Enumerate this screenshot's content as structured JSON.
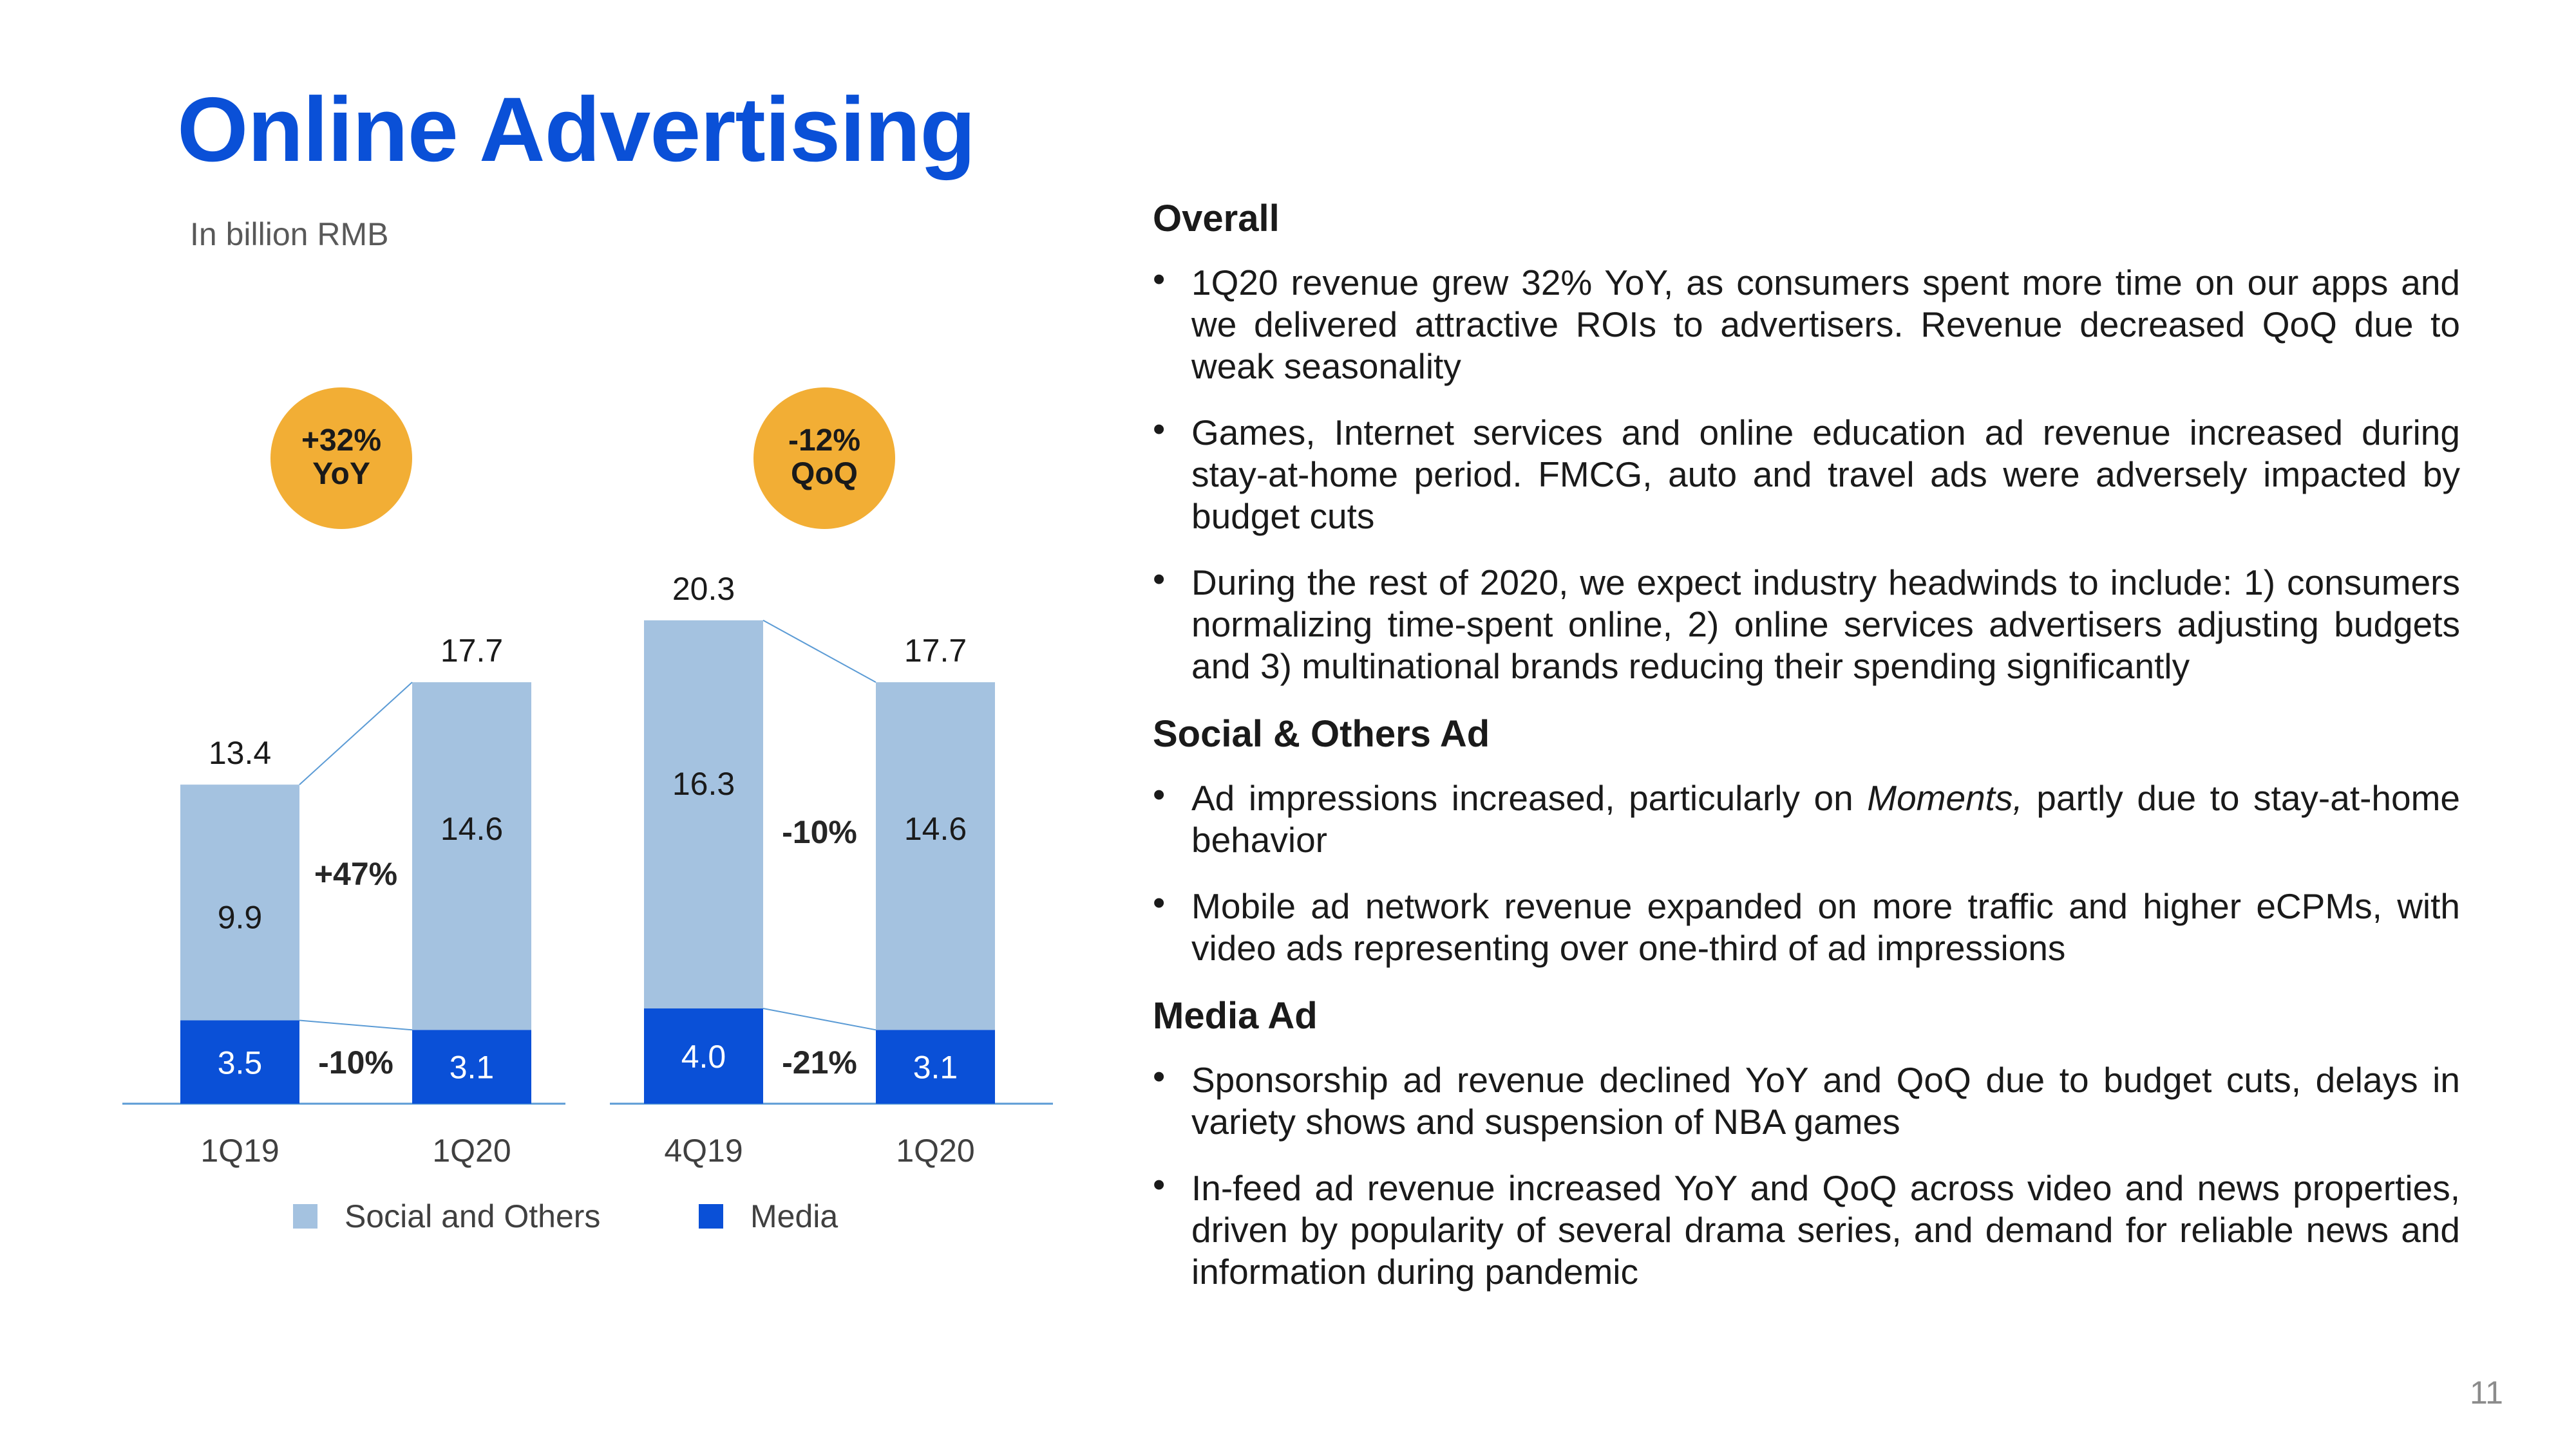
{
  "slide": {
    "title": "Online Advertising",
    "unit": "In billion RMB",
    "page_number": "11"
  },
  "colors": {
    "title": "#0a50d7",
    "social": "#a4c2e0",
    "media": "#0a50d7",
    "badge": "#f2ae35",
    "axis": "#5b9bd5"
  },
  "chart_data": [
    {
      "type": "bar",
      "stacked": true,
      "categories": [
        "1Q19",
        "1Q20"
      ],
      "series": [
        {
          "name": "Media",
          "values": [
            3.5,
            3.1
          ]
        },
        {
          "name": "Social and Others",
          "values": [
            9.9,
            14.6
          ]
        }
      ],
      "totals": [
        13.4,
        17.7
      ],
      "annotations": {
        "social_growth": "+47%",
        "media_growth": "-10%"
      },
      "badge": {
        "line1": "+32%",
        "line2": "YoY"
      }
    },
    {
      "type": "bar",
      "stacked": true,
      "categories": [
        "4Q19",
        "1Q20"
      ],
      "series": [
        {
          "name": "Media",
          "values": [
            4.0,
            3.1
          ]
        },
        {
          "name": "Social and Others",
          "values": [
            16.3,
            14.6
          ]
        }
      ],
      "totals": [
        20.3,
        17.7
      ],
      "annotations": {
        "social_growth": "-10%",
        "media_growth": "-21%"
      },
      "badge": {
        "line1": "-12%",
        "line2": "QoQ"
      }
    }
  ],
  "legend": [
    {
      "label": "Social and Others",
      "color": "#a4c2e0"
    },
    {
      "label": "Media",
      "color": "#0a50d7"
    }
  ],
  "sections": [
    {
      "heading": "Overall",
      "bullets": [
        [
          {
            "text": "1Q20 revenue grew 32% YoY, as consumers spent more time on our apps and we delivered attractive ROIs to advertisers. Revenue decreased QoQ due to weak seasonality"
          }
        ],
        [
          {
            "text": "Games, Internet services and online education ad revenue increased during stay-at-home period. FMCG, auto and travel ads were adversely impacted by budget cuts"
          }
        ],
        [
          {
            "text": "During the rest of 2020, we expect industry headwinds to include: 1) consumers normalizing time-spent online, 2) online services advertisers adjusting budgets and 3) multinational brands reducing their spending significantly"
          }
        ]
      ]
    },
    {
      "heading": "Social & Others Ad",
      "bullets": [
        [
          {
            "text": "Ad impressions increased, particularly on "
          },
          {
            "text": "Moments,",
            "italic": true
          },
          {
            "text": " partly due to stay-at-home behavior"
          }
        ],
        [
          {
            "text": "Mobile ad network revenue expanded on more traffic and higher eCPMs, with video ads representing over one-third of ad impressions"
          }
        ]
      ]
    },
    {
      "heading": "Media Ad",
      "bullets": [
        [
          {
            "text": "Sponsorship ad revenue declined YoY and QoQ due to budget cuts, delays in variety shows and suspension of NBA games"
          }
        ],
        [
          {
            "text": "In-feed ad revenue increased YoY and QoQ across video and news properties, driven by popularity of several drama series, and demand for reliable news and information during pandemic"
          }
        ]
      ]
    }
  ]
}
